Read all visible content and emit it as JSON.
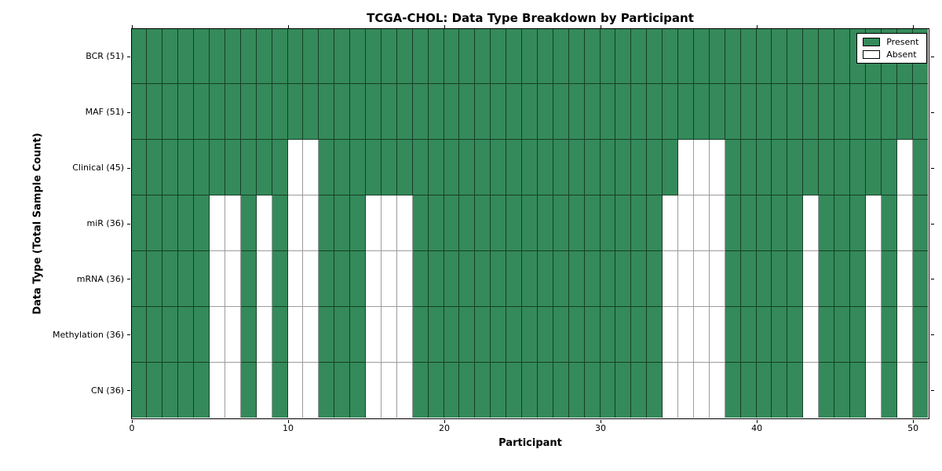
{
  "chart_data": {
    "type": "heatmap",
    "title": "TCGA-CHOL: Data Type Breakdown by Participant",
    "xlabel": "Participant",
    "ylabel": "Data Type (Total Sample Count)",
    "n_participants": 51,
    "xlim": [
      0,
      51
    ],
    "x_ticks": [
      0,
      10,
      20,
      30,
      40,
      50
    ],
    "grid": "cell-borders",
    "legend_position": "upper right",
    "legend_entries": [
      {
        "label": "Present",
        "value": 1
      },
      {
        "label": "Absent",
        "value": 0
      }
    ],
    "colors": {
      "present": "#348a5a",
      "absent": "#ffffff",
      "present_line": "rgba(0,0,0,0.55)",
      "absent_line": "#9c9c9c"
    },
    "rows": [
      {
        "label": "BCR (51)",
        "data_type": "BCR",
        "total_samples": 51,
        "absent_participants": []
      },
      {
        "label": "MAF (51)",
        "data_type": "MAF",
        "total_samples": 51,
        "absent_participants": []
      },
      {
        "label": "Clinical (45)",
        "data_type": "Clinical",
        "total_samples": 45,
        "absent_participants": [
          10,
          11,
          35,
          36,
          37,
          49
        ]
      },
      {
        "label": "miR (36)",
        "data_type": "miR",
        "total_samples": 36,
        "absent_participants": [
          5,
          6,
          8,
          10,
          11,
          15,
          16,
          17,
          34,
          35,
          36,
          37,
          43,
          47,
          49
        ]
      },
      {
        "label": "mRNA (36)",
        "data_type": "mRNA",
        "total_samples": 36,
        "absent_participants": [
          5,
          6,
          8,
          10,
          11,
          15,
          16,
          17,
          34,
          35,
          36,
          37,
          43,
          47,
          49
        ]
      },
      {
        "label": "Methylation (36)",
        "data_type": "Methylation",
        "total_samples": 36,
        "absent_participants": [
          5,
          6,
          8,
          10,
          11,
          15,
          16,
          17,
          34,
          35,
          36,
          37,
          43,
          47,
          49
        ]
      },
      {
        "label": "CN (36)",
        "data_type": "CN",
        "total_samples": 36,
        "absent_participants": [
          5,
          6,
          8,
          10,
          11,
          15,
          16,
          17,
          34,
          35,
          36,
          37,
          43,
          47,
          49
        ]
      }
    ]
  }
}
